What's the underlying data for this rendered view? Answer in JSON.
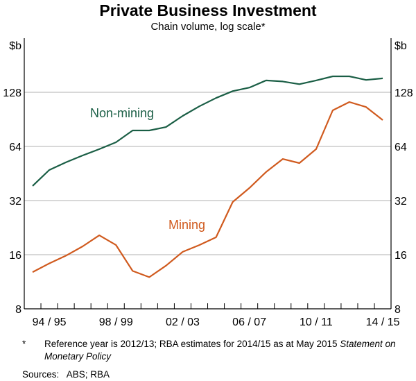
{
  "chart_data": {
    "type": "line",
    "title": "Private Business Investment",
    "subtitle": "Chain volume, log scale*",
    "ylabel_left": "$b",
    "ylabel_right": "$b",
    "yscale": "log2",
    "ylim": [
      8,
      256
    ],
    "yticks": [
      "8",
      "16",
      "32",
      "64",
      "128"
    ],
    "ytick_values": [
      8,
      16,
      32,
      64,
      128
    ],
    "x": [
      "93/94",
      "94/95",
      "95/96",
      "96/97",
      "97/98",
      "98/99",
      "99/00",
      "00/01",
      "01/02",
      "02/03",
      "03/04",
      "04/05",
      "05/06",
      "06/07",
      "07/08",
      "08/09",
      "09/10",
      "10/11",
      "11/12",
      "12/13",
      "13/14",
      "14/15"
    ],
    "xtick_labels": [
      "94 / 95",
      "98 / 99",
      "02 / 03",
      "06 / 07",
      "10 / 11",
      "14 / 15"
    ],
    "xtick_label_indices": [
      1,
      5,
      9,
      13,
      17,
      21
    ],
    "grid": true,
    "series": [
      {
        "name": "Non-mining",
        "color": "#1a5e45",
        "values": [
          38.6,
          47.3,
          52.2,
          57,
          61.8,
          67.5,
          78.5,
          78.5,
          82,
          94.6,
          107,
          119,
          130,
          136,
          149,
          147,
          142,
          149,
          157,
          157,
          150,
          153
        ]
      },
      {
        "name": "Mining",
        "color": "#d05a1e",
        "values": [
          12.8,
          14.3,
          15.8,
          17.8,
          20.5,
          18.1,
          13.0,
          12.0,
          13.9,
          16.6,
          18.1,
          20.0,
          31.4,
          37.6,
          46.1,
          54.5,
          51.7,
          61.8,
          101.6,
          113,
          106,
          89.7
        ]
      }
    ]
  },
  "footnote": {
    "marker": "*",
    "text_main": "Reference year is 2012/13; RBA estimates for 2014/15 as at May 2015 ",
    "text_italic": "Statement on Monetary Policy"
  },
  "sources": "Sources:   ABS; RBA"
}
